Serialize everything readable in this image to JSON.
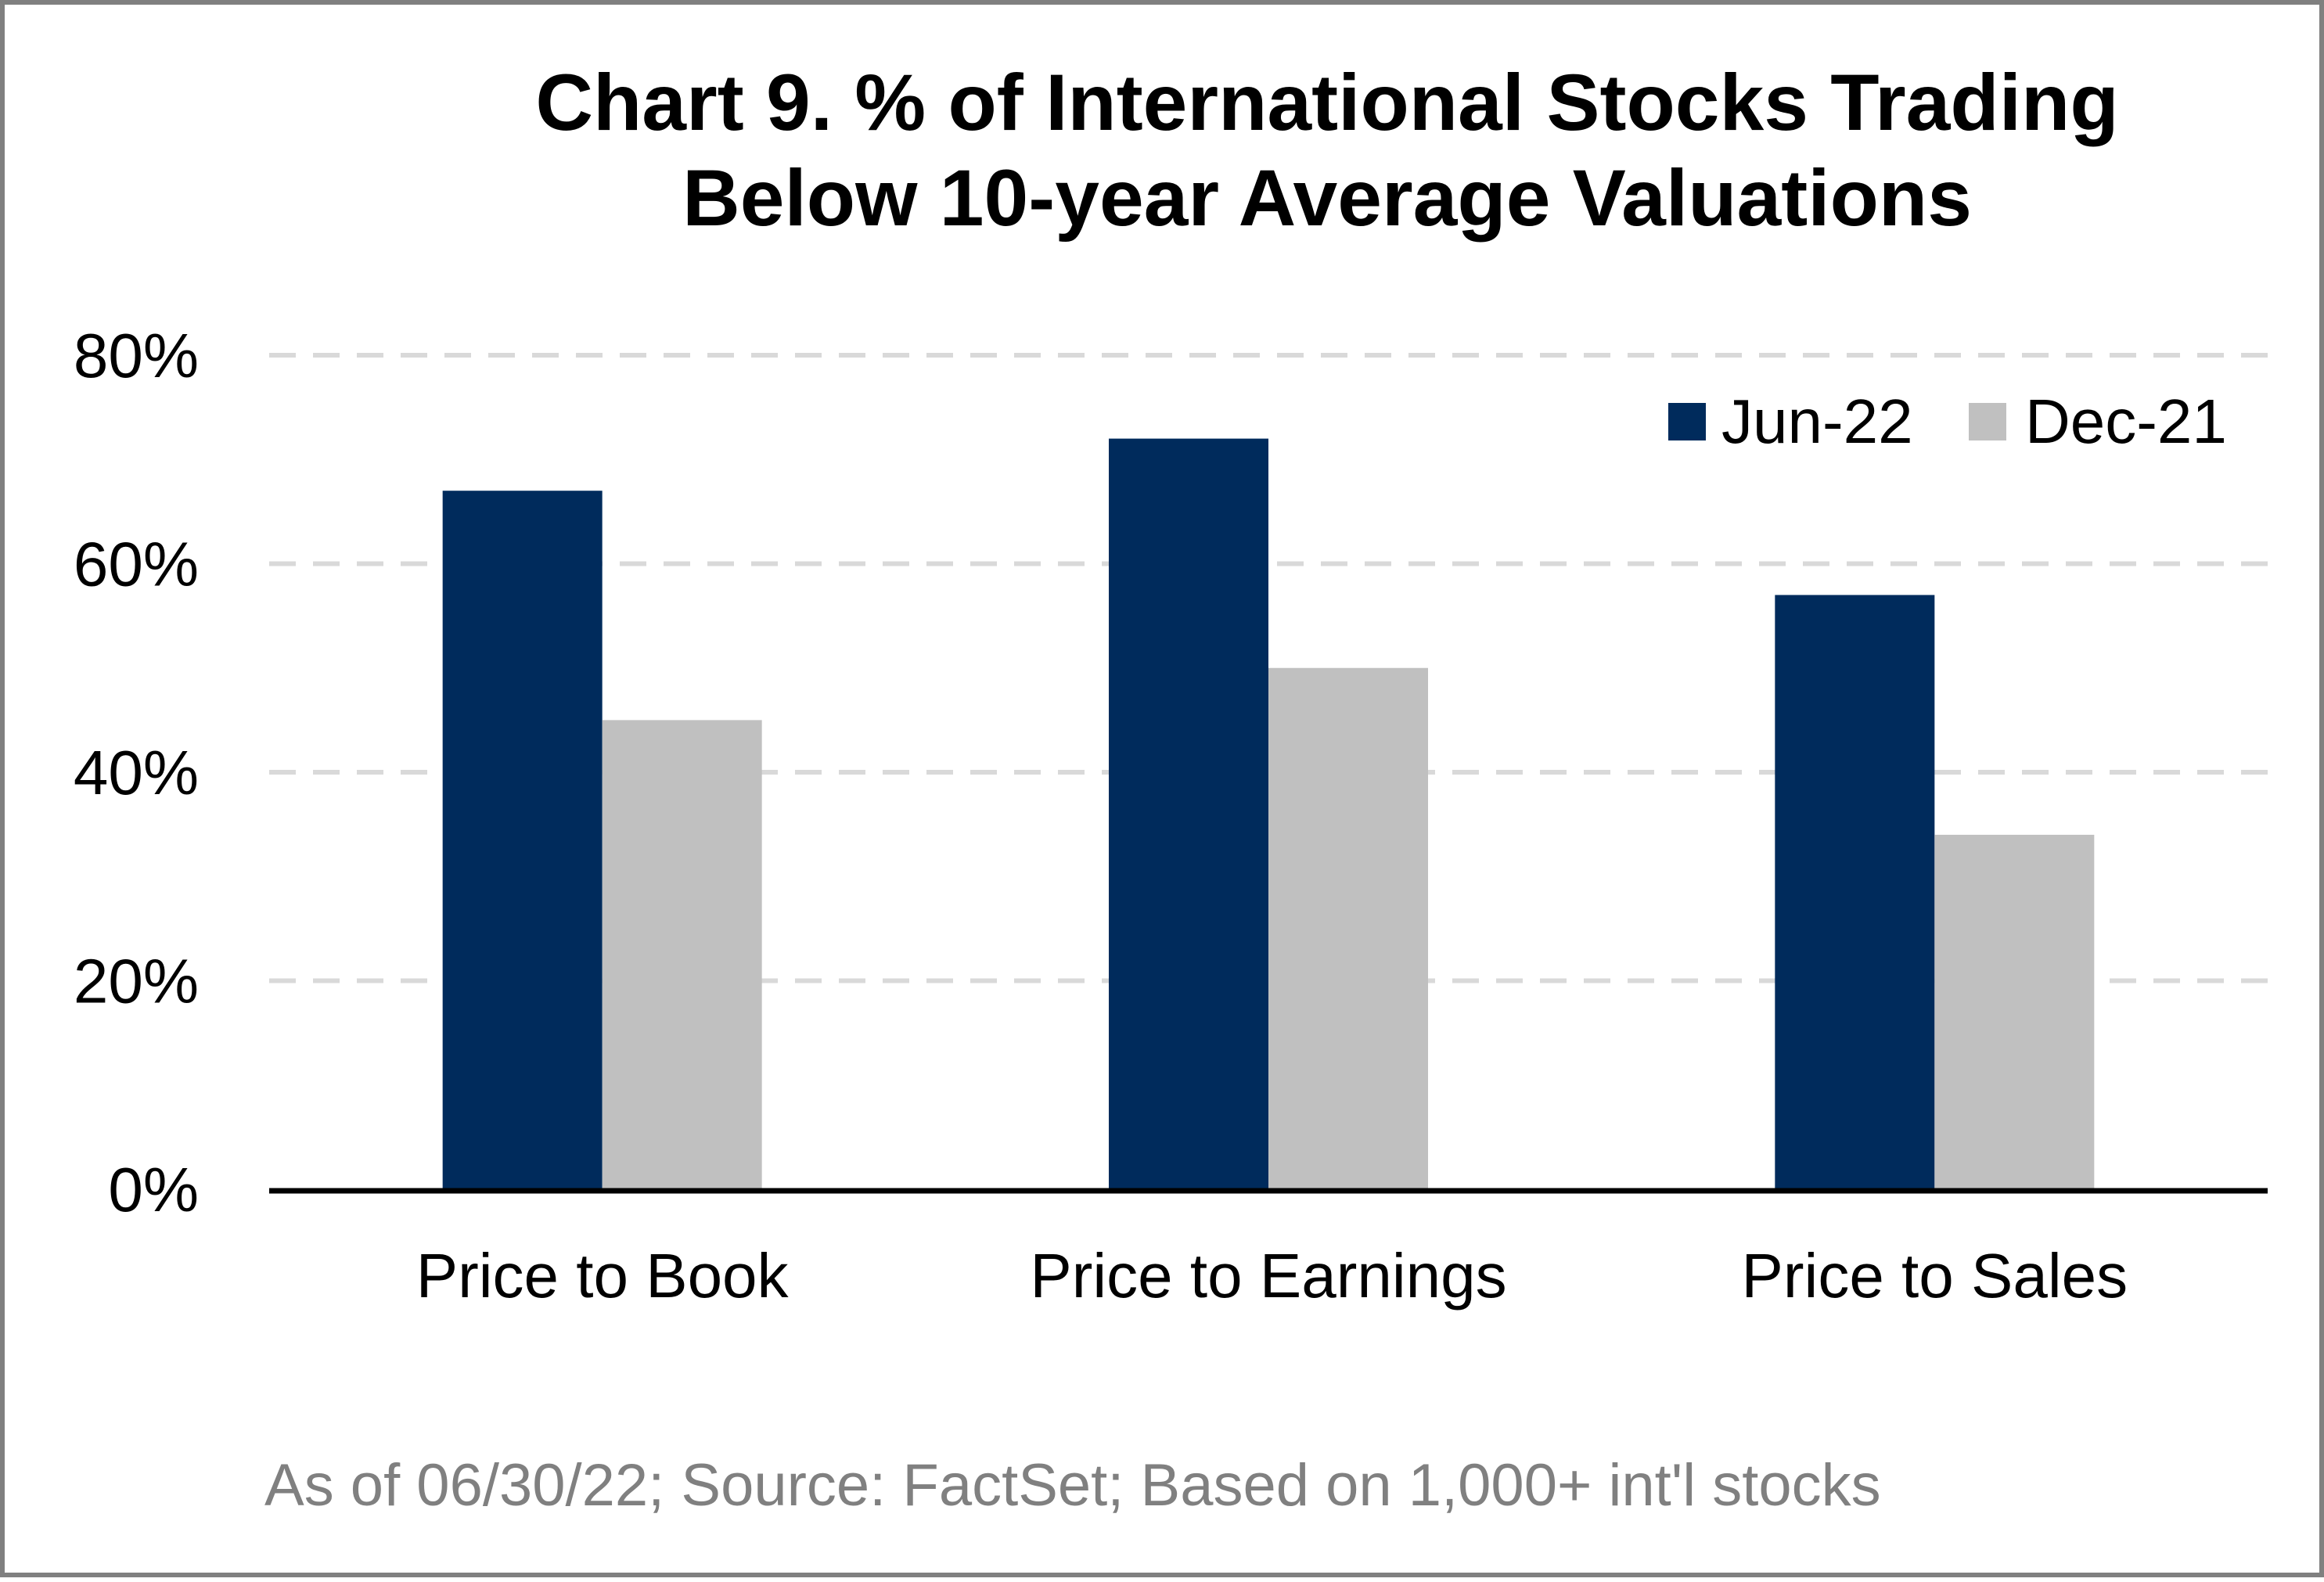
{
  "chart_data": {
    "type": "bar",
    "title_lines": [
      "Chart 9. % of International Stocks Trading",
      "Below 10-year Average Valuations"
    ],
    "categories": [
      "Price to Book",
      "Price to Earnings",
      "Price to Sales"
    ],
    "series": [
      {
        "name": "Jun-22",
        "values": [
          67,
          72,
          57
        ],
        "color": "#002b5c"
      },
      {
        "name": "Dec-21",
        "values": [
          45,
          50,
          34
        ],
        "color": "#c0c0c0"
      }
    ],
    "yticks": [
      "0%",
      "20%",
      "40%",
      "60%",
      "80%"
    ],
    "ytick_values": [
      0,
      20,
      40,
      60,
      80
    ],
    "ylim": [
      0,
      80
    ],
    "grid": true,
    "grid_style": "dashed",
    "legend_position": "top-right",
    "footnote": "As of 06/30/22; Source: FactSet; Based on 1,000+ int'l stocks"
  }
}
